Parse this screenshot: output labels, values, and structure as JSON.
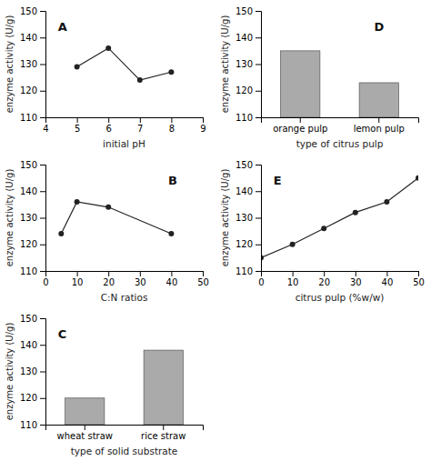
{
  "chart_data": [
    {
      "type": "line",
      "annotation": "A",
      "x": [
        5,
        6,
        7,
        8
      ],
      "values": [
        129,
        136,
        124,
        127
      ],
      "xlabel": "initial pH",
      "ylabel": "enzyme activity (U/g)",
      "xlim": [
        4,
        9
      ],
      "ylim": [
        110,
        150
      ],
      "xticks": [
        4,
        5,
        6,
        7,
        8,
        9
      ],
      "yticks": [
        110,
        120,
        130,
        140,
        150
      ],
      "color": "#222222",
      "marker": "circle",
      "grid": false
    },
    {
      "type": "line",
      "annotation": "B",
      "x": [
        5,
        10,
        20,
        40
      ],
      "values": [
        124,
        136,
        134,
        124
      ],
      "xlabel": "C:N ratios",
      "ylabel": "enzyme activity (U/g)",
      "xlim": [
        0,
        50
      ],
      "ylim": [
        110,
        150
      ],
      "xticks": [
        0,
        10,
        20,
        30,
        40,
        50
      ],
      "yticks": [
        110,
        120,
        130,
        140,
        150
      ],
      "color": "#222222",
      "marker": "circle",
      "grid": false
    },
    {
      "type": "bar",
      "annotation": "C",
      "categories": [
        "wheat straw",
        "rice straw"
      ],
      "values": [
        120,
        138
      ],
      "xlabel": "type of solid substrate",
      "ylabel": "enzyme activity (U/g)",
      "ylim": [
        110,
        150
      ],
      "yticks": [
        110,
        120,
        130,
        140,
        150
      ],
      "color": "#aaaaaa",
      "grid": false
    },
    {
      "type": "bar",
      "annotation": "D",
      "categories": [
        "orange pulp",
        "lemon pulp"
      ],
      "values": [
        135,
        123
      ],
      "xlabel": "type of citrus pulp",
      "ylabel": "enzyme activity (U/g)",
      "ylim": [
        110,
        150
      ],
      "yticks": [
        110,
        120,
        130,
        140,
        150
      ],
      "color": "#aaaaaa",
      "grid": false
    },
    {
      "type": "line",
      "annotation": "E",
      "x": [
        0,
        10,
        20,
        30,
        40,
        50
      ],
      "values": [
        115,
        120,
        126,
        132,
        136,
        145
      ],
      "xlabel": "citrus pulp (%w/w)",
      "ylabel": "enzyme activity (U/g)",
      "xlim": [
        0,
        50
      ],
      "ylim": [
        110,
        150
      ],
      "xticks": [
        0,
        10,
        20,
        30,
        40,
        50
      ],
      "yticks": [
        110,
        120,
        130,
        140,
        150
      ],
      "color": "#222222",
      "marker": "circle",
      "grid": false
    }
  ]
}
